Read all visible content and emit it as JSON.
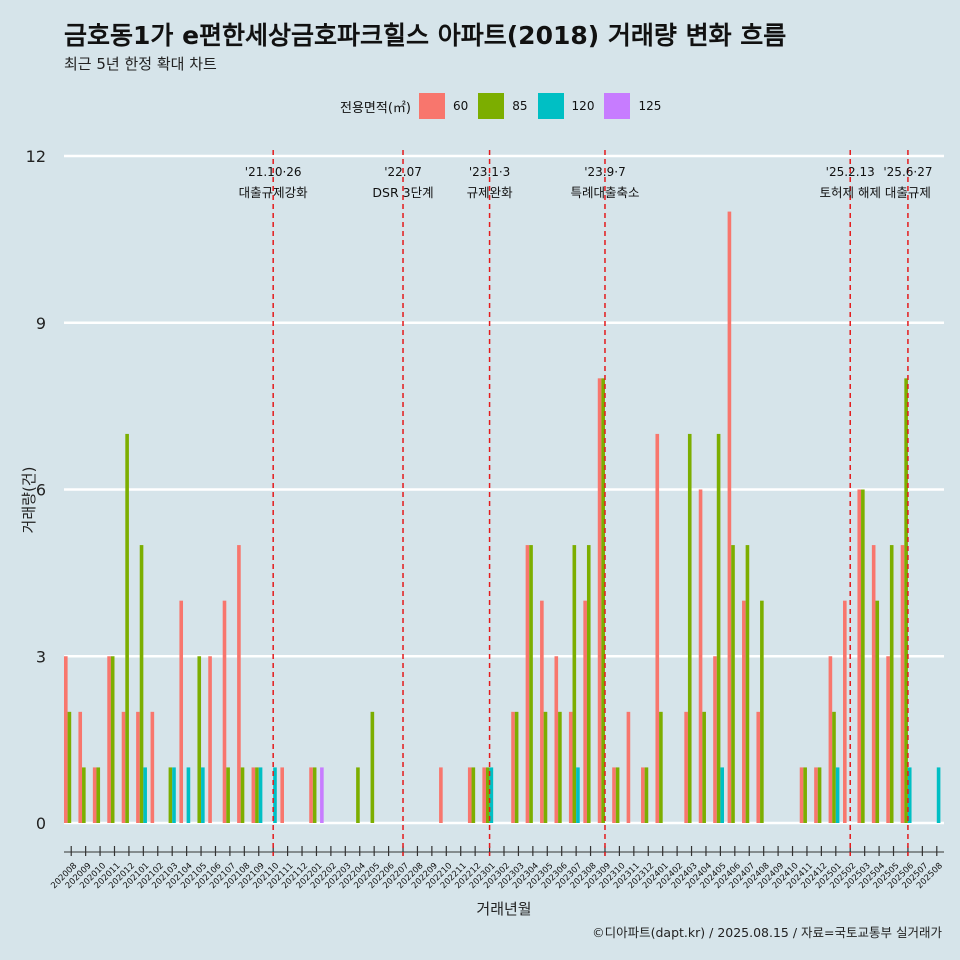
{
  "title": "금호동1가 e편한세상금호파크힐스 아파트(2018) 거래량 변화 흐름",
  "subtitle": "최근 5년 한정 확대 차트",
  "caption": "©디아파트(dapt.kr) / 2025.08.15 / 자료=국토교통부 실거래가",
  "legend": {
    "title": "전용면적(㎡)",
    "items": [
      {
        "label": "60",
        "color": "#f8766d"
      },
      {
        "label": "85",
        "color": "#7cae00"
      },
      {
        "label": "120",
        "color": "#00bfc4"
      },
      {
        "label": "125",
        "color": "#c77cff"
      }
    ]
  },
  "chart_data": {
    "type": "bar",
    "xlabel": "거래년월",
    "ylabel": "거래량(건)",
    "ylim": [
      0,
      12
    ],
    "yticks": [
      0,
      3,
      6,
      9,
      12
    ],
    "grid": true,
    "legend_position": "top",
    "categories": [
      "202008",
      "202009",
      "202010",
      "202011",
      "202012",
      "202101",
      "202102",
      "202103",
      "202104",
      "202105",
      "202106",
      "202107",
      "202108",
      "202109",
      "202110",
      "202111",
      "202112",
      "202201",
      "202202",
      "202203",
      "202204",
      "202205",
      "202206",
      "202207",
      "202208",
      "202209",
      "202210",
      "202211",
      "202212",
      "202301",
      "202302",
      "202303",
      "202304",
      "202305",
      "202306",
      "202307",
      "202308",
      "202309",
      "202310",
      "202311",
      "202312",
      "202401",
      "202402",
      "202403",
      "202404",
      "202405",
      "202406",
      "202407",
      "202408",
      "202409",
      "202410",
      "202411",
      "202412",
      "202501",
      "202502",
      "202503",
      "202504",
      "202505",
      "202506",
      "202507",
      "202508"
    ],
    "series": [
      {
        "name": "60",
        "values": [
          3,
          2,
          1,
          3,
          2,
          2,
          2,
          0,
          4,
          0,
          3,
          4,
          5,
          1,
          0,
          1,
          0,
          1,
          0,
          0,
          0,
          0,
          0,
          0,
          0,
          0,
          1,
          0,
          1,
          1,
          0,
          2,
          5,
          4,
          3,
          2,
          4,
          8,
          1,
          2,
          1,
          7,
          0,
          2,
          6,
          3,
          11,
          4,
          2,
          0,
          0,
          1,
          1,
          3,
          4,
          6,
          5,
          3,
          5,
          0,
          0
        ]
      },
      {
        "name": "85",
        "values": [
          2,
          1,
          1,
          3,
          7,
          5,
          0,
          1,
          0,
          3,
          0,
          1,
          1,
          1,
          0,
          0,
          0,
          1,
          0,
          0,
          1,
          2,
          0,
          0,
          0,
          0,
          0,
          0,
          1,
          1,
          0,
          2,
          5,
          2,
          2,
          5,
          5,
          8,
          1,
          0,
          1,
          2,
          0,
          7,
          2,
          7,
          5,
          5,
          4,
          0,
          0,
          1,
          1,
          2,
          0,
          6,
          4,
          5,
          8,
          0,
          0
        ]
      },
      {
        "name": "120",
        "values": [
          0,
          0,
          0,
          0,
          0,
          1,
          0,
          1,
          1,
          1,
          0,
          0,
          0,
          1,
          1,
          0,
          0,
          0,
          0,
          0,
          0,
          0,
          0,
          0,
          0,
          0,
          0,
          0,
          0,
          1,
          0,
          0,
          0,
          0,
          0,
          1,
          0,
          0,
          0,
          0,
          0,
          0,
          0,
          0,
          0,
          1,
          0,
          0,
          0,
          0,
          0,
          0,
          0,
          1,
          0,
          0,
          0,
          0,
          1,
          0,
          1
        ]
      },
      {
        "name": "125",
        "values": [
          0,
          0,
          0,
          0,
          0,
          0,
          0,
          0,
          0,
          0,
          0,
          0,
          0,
          0,
          0,
          0,
          0,
          1,
          0,
          0,
          0,
          0,
          0,
          0,
          0,
          0,
          0,
          0,
          0,
          0,
          0,
          0,
          0,
          0,
          0,
          0,
          0,
          0,
          0,
          0,
          0,
          0,
          0,
          0,
          0,
          0,
          0,
          0,
          0,
          0,
          0,
          0,
          0,
          0,
          0,
          0,
          0,
          0,
          0,
          0,
          0
        ]
      }
    ],
    "annotations": [
      {
        "x": "202110",
        "date": "'21.10·26",
        "text": "대출규제강화"
      },
      {
        "x": "202207",
        "date": "'22.07",
        "text": "DSR 3단계"
      },
      {
        "x": "202301",
        "date": "'23.1·3",
        "text": "규제완화"
      },
      {
        "x": "202309",
        "date": "'23.9·7",
        "text": "특례대출축소"
      },
      {
        "x": "202502",
        "date": "'25.2.13",
        "text": "토허제 해제"
      },
      {
        "x": "202506",
        "date": "'25.6·27",
        "text": "대출규제"
      }
    ]
  }
}
